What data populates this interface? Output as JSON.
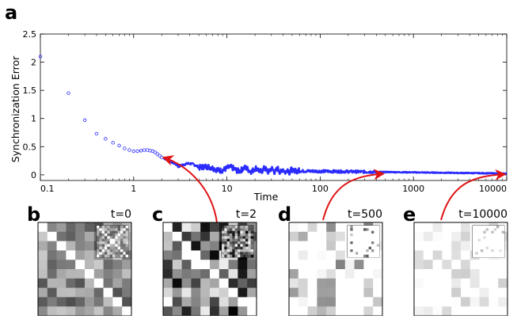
{
  "panel_letters": [
    "a",
    "b",
    "c",
    "d",
    "e"
  ],
  "chart_data": {
    "type": "scatter",
    "xlabel": "Time",
    "ylabel": "Synchronization Error",
    "xscale": "log",
    "xlim": [
      0.1,
      10000
    ],
    "ylim": [
      -0.1,
      2.5
    ],
    "xticks": [
      0.1,
      1,
      10,
      100,
      1000,
      10000
    ],
    "xtick_labels": [
      "0.1",
      "1",
      "10",
      "100",
      "1000",
      "10000"
    ],
    "yticks": [
      0,
      0.5,
      1,
      1.5,
      2,
      2.5
    ],
    "ytick_labels": [
      "0",
      "0.5",
      "1",
      "1.5",
      "2",
      "2.5"
    ],
    "grid": false,
    "marker_color": "#2b2bff",
    "arrow_color": "#e01414",
    "series": [
      {
        "x": [
          0.1,
          0.2,
          0.3,
          0.4,
          0.5,
          0.6,
          0.7,
          0.8,
          0.9,
          1.0,
          1.1,
          1.2,
          1.3,
          1.4,
          1.5,
          1.6,
          1.7,
          1.8,
          1.9,
          2.0
        ],
        "y": [
          2.1,
          1.45,
          0.97,
          0.73,
          0.64,
          0.57,
          0.52,
          0.47,
          0.44,
          0.42,
          0.42,
          0.43,
          0.44,
          0.44,
          0.43,
          0.42,
          0.4,
          0.37,
          0.34,
          0.31
        ]
      }
    ],
    "snapshots": [
      {
        "label": "t=0",
        "time": 0
      },
      {
        "label": "t=2",
        "time": 2
      },
      {
        "label": "t=500",
        "time": 500
      },
      {
        "label": "t=10000",
        "time": 10000
      }
    ]
  }
}
